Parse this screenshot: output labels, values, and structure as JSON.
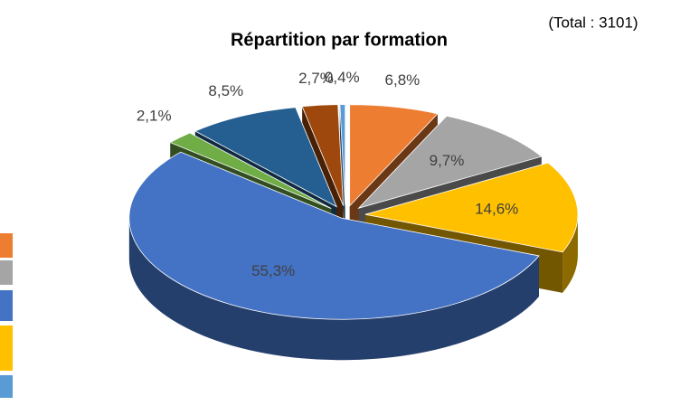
{
  "chart_data": {
    "type": "pie3d",
    "title": "Répartition par formation",
    "annotation": "(Total : 3101)",
    "values": [
      6.8,
      9.7,
      14.6,
      55.3,
      2.1,
      8.5,
      2.7,
      0.4
    ],
    "value_labels": [
      "6,8%",
      "9,7%",
      "14,6%",
      "55,3%",
      "2,1%",
      "8,5%",
      "2,7%",
      "0,4%"
    ],
    "colors": [
      "#ED7D31",
      "#A5A5A5",
      "#FFC000",
      "#4472C4",
      "#70AD47",
      "#255E91",
      "#9E480E",
      "#5B9BD5"
    ]
  }
}
